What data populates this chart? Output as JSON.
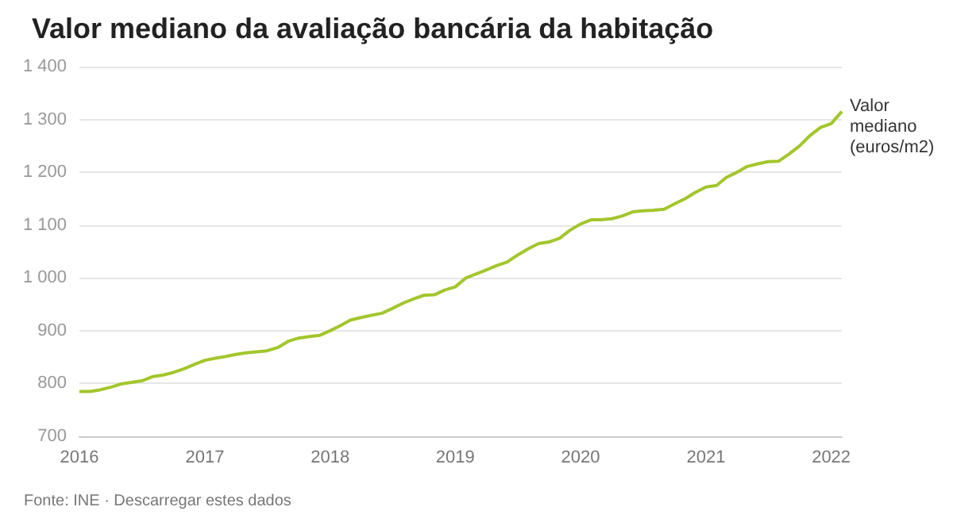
{
  "chart_data": {
    "type": "line",
    "title": "Valor mediano da avaliação bancária da habitação",
    "annotations": [
      "Fonte: INE · Descarregar estes dados"
    ],
    "x": [
      "2016-01",
      "2016-02",
      "2016-03",
      "2016-04",
      "2016-05",
      "2016-06",
      "2016-07",
      "2016-08",
      "2016-09",
      "2016-10",
      "2016-11",
      "2016-12",
      "2017-01",
      "2017-02",
      "2017-03",
      "2017-04",
      "2017-05",
      "2017-06",
      "2017-07",
      "2017-08",
      "2017-09",
      "2017-10",
      "2017-11",
      "2017-12",
      "2018-01",
      "2018-02",
      "2018-03",
      "2018-04",
      "2018-05",
      "2018-06",
      "2018-07",
      "2018-08",
      "2018-09",
      "2018-10",
      "2018-11",
      "2018-12",
      "2019-01",
      "2019-02",
      "2019-03",
      "2019-04",
      "2019-05",
      "2019-06",
      "2019-07",
      "2019-08",
      "2019-09",
      "2019-10",
      "2019-11",
      "2019-12",
      "2020-01",
      "2020-02",
      "2020-03",
      "2020-04",
      "2020-05",
      "2020-06",
      "2020-07",
      "2020-08",
      "2020-09",
      "2020-10",
      "2020-11",
      "2020-12",
      "2021-01",
      "2021-02",
      "2021-03",
      "2021-04",
      "2021-05",
      "2021-06",
      "2021-07",
      "2021-08",
      "2021-09",
      "2021-10",
      "2021-11",
      "2021-12",
      "2022-01",
      "2022-02"
    ],
    "series": [
      {
        "name": "Valor mediano (euros/m2)",
        "color": "#a3c62c",
        "values": [
          785,
          785,
          788,
          793,
          799,
          802,
          805,
          813,
          816,
          821,
          828,
          836,
          844,
          848,
          851,
          855,
          858,
          860,
          862,
          868,
          880,
          886,
          889,
          891,
          900,
          910,
          920,
          925,
          929,
          933,
          942,
          952,
          960,
          967,
          968,
          977,
          983,
          1000,
          1007,
          1015,
          1023,
          1030,
          1043,
          1055,
          1065,
          1068,
          1075,
          1090,
          1102,
          1110,
          1110,
          1112,
          1117,
          1125,
          1127,
          1128,
          1130,
          1140,
          1150,
          1162,
          1172,
          1175,
          1190,
          1200,
          1211,
          1216,
          1220,
          1221,
          1235,
          1250,
          1270,
          1285,
          1292,
          1315
        ]
      }
    ],
    "xlim": [
      "2016-01",
      "2022-02"
    ],
    "xticks": [
      "2016",
      "2017",
      "2018",
      "2019",
      "2020",
      "2021",
      "2022"
    ],
    "ylim": [
      700,
      1400
    ],
    "yticks": [
      {
        "value": 700,
        "label": "700"
      },
      {
        "value": 800,
        "label": "800"
      },
      {
        "value": 900,
        "label": "900"
      },
      {
        "value": 1000,
        "label": "1 000"
      },
      {
        "value": 1100,
        "label": "1 100"
      },
      {
        "value": 1200,
        "label": "1 200"
      },
      {
        "value": 1300,
        "label": "1 300"
      },
      {
        "value": 1400,
        "label": "1 400"
      }
    ],
    "grid": "y",
    "legend": false,
    "marker": "none",
    "line_style": "solid"
  }
}
